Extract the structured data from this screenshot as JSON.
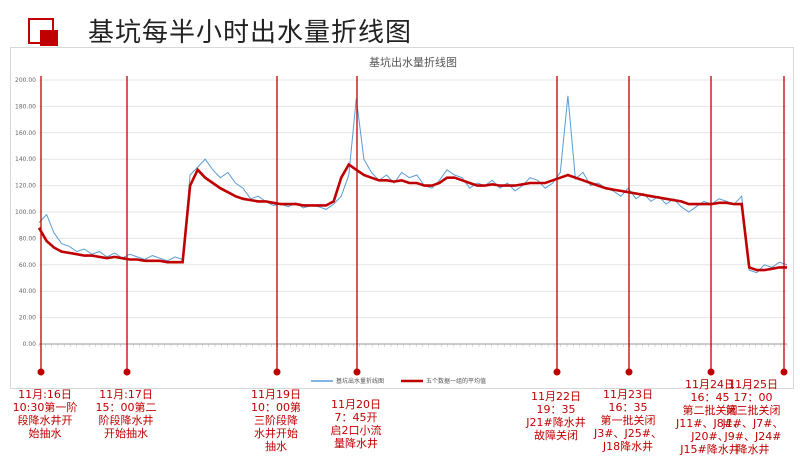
{
  "header": {
    "title": "基坑每半小时出水量折线图"
  },
  "colors": {
    "accent": "#c00000",
    "series_raw": "#5b9bd5",
    "series_avg": "#c00000",
    "grid": "#e4e4e4"
  },
  "chart_data": {
    "type": "line",
    "title": "基坑出水量折线图",
    "xlabel": "",
    "ylabel": "",
    "ylim": [
      0,
      200
    ],
    "yticks": [
      "0.00",
      "20.00",
      "40.00",
      "60.00",
      "80.00",
      "100.00",
      "120.00",
      "140.00",
      "160.00",
      "180.00",
      "200.00"
    ],
    "grid": true,
    "legend_position": "bottom",
    "x_start_index": 0,
    "x_end_index": 100,
    "series": [
      {
        "name": "基坑出水量折线图",
        "color": "#5b9bd5",
        "values": [
          92,
          98,
          84,
          76,
          74,
          70,
          72,
          68,
          70,
          66,
          69,
          65,
          68,
          66,
          64,
          67,
          65,
          63,
          66,
          64,
          128,
          134,
          140,
          132,
          126,
          130,
          122,
          118,
          110,
          112,
          108,
          105,
          106,
          104,
          107,
          103,
          105,
          104,
          102,
          106,
          112,
          128,
          186,
          140,
          130,
          124,
          128,
          122,
          130,
          126,
          128,
          120,
          118,
          124,
          132,
          128,
          126,
          118,
          122,
          120,
          124,
          118,
          122,
          116,
          120,
          126,
          124,
          118,
          122,
          130,
          188,
          125,
          130,
          120,
          122,
          118,
          116,
          112,
          118,
          110,
          114,
          108,
          112,
          106,
          110,
          104,
          100,
          104,
          108,
          106,
          110,
          108,
          106,
          112,
          56,
          54,
          60,
          58,
          62,
          60
        ]
      },
      {
        "name": "五个数据一组的平均值",
        "color": "#c00000",
        "values": [
          88,
          78,
          73,
          70,
          69,
          68,
          67,
          67,
          66,
          65,
          66,
          65,
          64,
          64,
          63,
          63,
          63,
          62,
          62,
          62,
          120,
          132,
          126,
          122,
          118,
          115,
          112,
          110,
          109,
          108,
          108,
          107,
          106,
          106,
          106,
          105,
          105,
          105,
          105,
          108,
          126,
          136,
          132,
          128,
          126,
          124,
          124,
          123,
          124,
          122,
          122,
          120,
          120,
          122,
          126,
          126,
          124,
          122,
          120,
          120,
          121,
          120,
          120,
          120,
          121,
          122,
          122,
          122,
          124,
          126,
          128,
          126,
          124,
          122,
          120,
          118,
          117,
          116,
          115,
          114,
          113,
          112,
          111,
          110,
          109,
          108,
          106,
          106,
          106,
          106,
          107,
          107,
          106,
          106,
          58,
          56,
          56,
          57,
          58,
          58
        ]
      }
    ],
    "markers_index": [
      0,
      19,
      40,
      63,
      90,
      111,
      120,
      152,
      180
    ],
    "annotations": [
      {
        "label": "11月:16日\n10:30第一阶\n段降水井开\n始抽水"
      },
      {
        "label": "11月:17日\n15：00第二\n阶段降水井\n开始抽水"
      },
      {
        "label": "11月19日\n10：00第\n三阶段降\n水井开始\n抽水"
      },
      {
        "label": "11月20日\n7：45开\n启2口小流\n量降水井"
      },
      {
        "label": "11月22日\n19：35\nJ21#降水井\n故障关闭"
      },
      {
        "label": "11月23日\n16：35\n第一批关闭\nJ3#、J25#、\nJ18降水井"
      },
      {
        "label": "11月24日\n16：45\n第二批关闭\nJ11#、J8#、\nJ20#、\nJ15#降水井"
      },
      {
        "label": "11月25日\n17：00\n第三批关闭\nJ1#、J7#、\nJ9#、J24#\n降水井"
      }
    ]
  }
}
